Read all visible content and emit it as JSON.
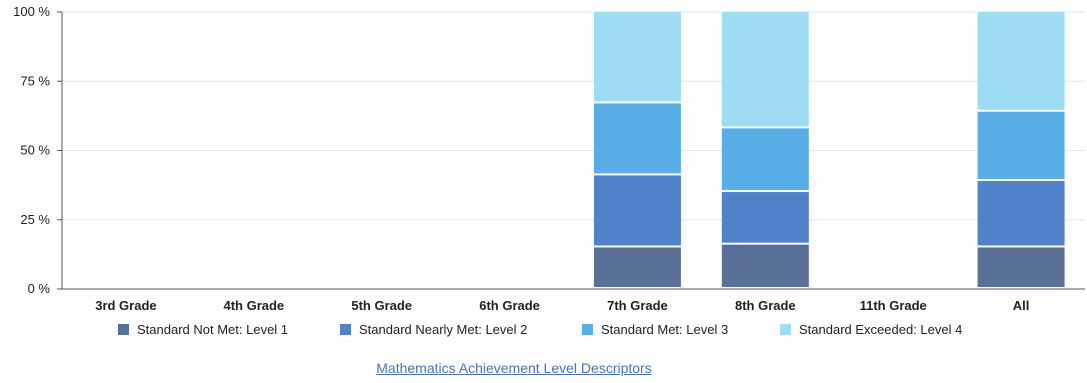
{
  "chart_data": {
    "type": "bar",
    "stacked": true,
    "categories": [
      "3rd Grade",
      "4th Grade",
      "5th Grade",
      "6th Grade",
      "7th Grade",
      "8th Grade",
      "11th Grade",
      "All"
    ],
    "y_ticks": [
      "0 %",
      "25 %",
      "50 %",
      "75 %",
      "100 %"
    ],
    "ylim": [
      0,
      100
    ],
    "grid": true,
    "legend_position": "bottom",
    "series": [
      {
        "name": "Standard Not Met: Level 1",
        "color": "#5a6f95",
        "values": [
          0,
          0,
          0,
          0,
          15,
          16,
          0,
          15
        ]
      },
      {
        "name": "Standard Nearly Met: Level 2",
        "color": "#4f82c8",
        "values": [
          0,
          0,
          0,
          0,
          26,
          19,
          0,
          24
        ]
      },
      {
        "name": "Standard Met: Level 3",
        "color": "#5aaee6",
        "values": [
          0,
          0,
          0,
          0,
          26,
          23,
          0,
          25
        ]
      },
      {
        "name": "Standard Exceeded: Level 4",
        "color": "#9ddcf3",
        "values": [
          0,
          0,
          0,
          0,
          33,
          42,
          0,
          36
        ]
      }
    ]
  },
  "link": {
    "label": "Mathematics Achievement Level Descriptors"
  }
}
